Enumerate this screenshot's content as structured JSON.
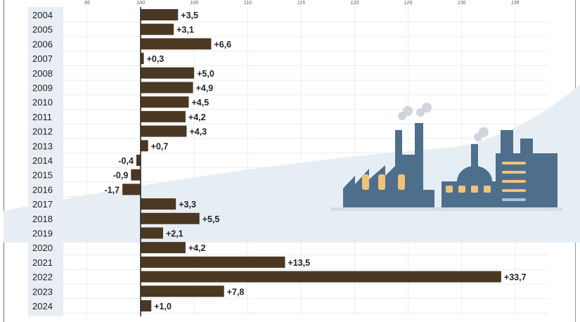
{
  "chart_data": {
    "type": "bar",
    "orientation": "horizontal",
    "baseline": 100,
    "xlim": [
      90,
      140
    ],
    "xticks": [
      95,
      100,
      105,
      110,
      115,
      120,
      125,
      130,
      135
    ],
    "grid": true,
    "categories": [
      "2004",
      "2005",
      "2006",
      "2007",
      "2008",
      "2009",
      "2010",
      "2011",
      "2012",
      "2013",
      "2014",
      "2015",
      "2016",
      "2017",
      "2018",
      "2019",
      "2020",
      "2021",
      "2022",
      "2023",
      "2024"
    ],
    "values": [
      3.5,
      3.1,
      6.6,
      0.3,
      5.0,
      4.9,
      4.5,
      4.2,
      4.3,
      0.7,
      -0.4,
      -0.9,
      -1.7,
      3.3,
      5.5,
      2.1,
      4.2,
      13.5,
      33.7,
      7.8,
      1.0
    ],
    "labels": [
      "+3,5",
      "+3,1",
      "+6,6",
      "+0,3",
      "+5,0",
      "+4,9",
      "+4,5",
      "+4,2",
      "+4,3",
      "+0,7",
      "-0,4",
      "-0,9",
      "-1,7",
      "+3,3",
      "+5,5",
      "+2,1",
      "+4,2",
      "+13,5",
      "+33,7",
      "+7,8",
      "+1,0"
    ],
    "bar_color": "#4a3823",
    "decoration": "factory-illustration"
  }
}
